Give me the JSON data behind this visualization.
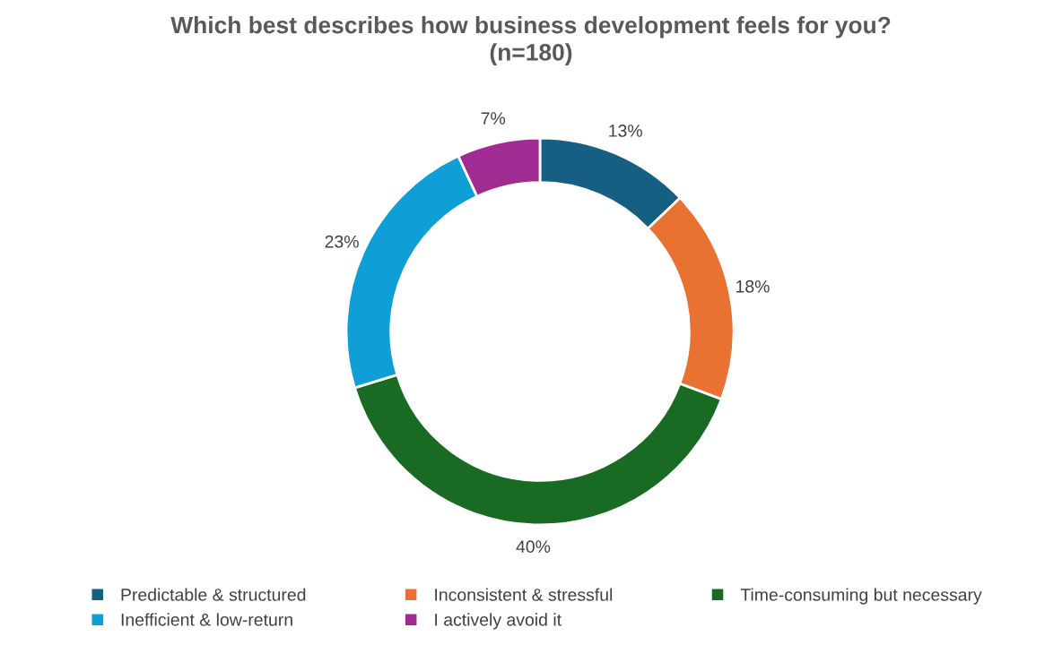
{
  "chart_data": {
    "type": "donut",
    "title": "Which best describes how business development feels for you?\n(n=180)",
    "categories": [
      "Predictable & structured",
      "Inconsistent & stressful",
      "Time-consuming but necessary",
      "Inefficient & low-return",
      "I actively avoid it"
    ],
    "values": [
      13,
      18,
      40,
      23,
      7
    ],
    "colors": [
      "#156082",
      "#e97132",
      "#196b24",
      "#0f9ed5",
      "#a02b93"
    ],
    "value_labels": [
      "13%",
      "18%",
      "40%",
      "23%",
      "7%"
    ],
    "legend": "bottom"
  }
}
